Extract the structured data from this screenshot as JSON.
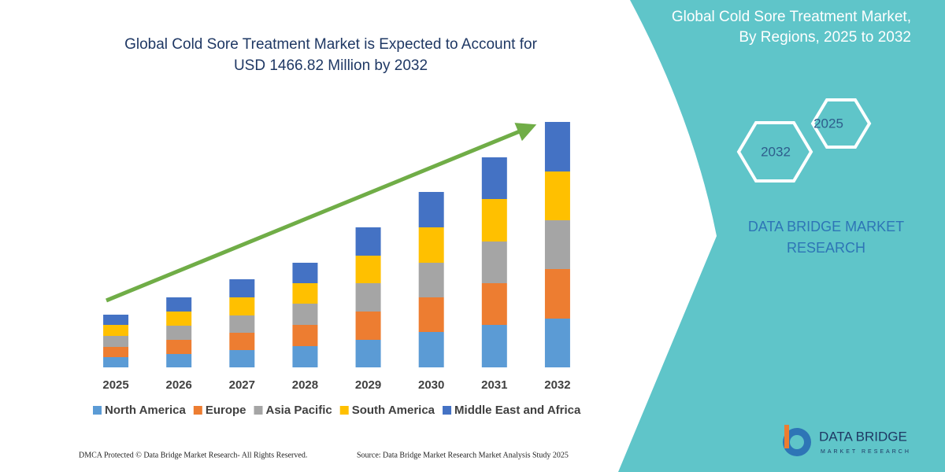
{
  "chart_data": {
    "type": "bar",
    "stacked": true,
    "title": [
      "Global Cold Sore Treatment Market is Expected to Account for",
      "USD 1466.82 Million by 2032"
    ],
    "categories": [
      "2025",
      "2026",
      "2027",
      "2028",
      "2029",
      "2030",
      "2031",
      "2032"
    ],
    "series": [
      {
        "name": "North America",
        "color": "#5b9bd5",
        "values": [
          13,
          17,
          22,
          27,
          35,
          45,
          54,
          62
        ]
      },
      {
        "name": "Europe",
        "color": "#ed7d31",
        "values": [
          13,
          18,
          22,
          27,
          36,
          44,
          53,
          63
        ]
      },
      {
        "name": "Asia Pacific",
        "color": "#a5a5a5",
        "values": [
          14,
          18,
          22,
          27,
          36,
          44,
          53,
          62
        ]
      },
      {
        "name": "South America",
        "color": "#ffc000",
        "values": [
          14,
          18,
          23,
          26,
          35,
          45,
          54,
          62
        ]
      },
      {
        "name": "Middle East and Africa",
        "color": "#4472c4",
        "values": [
          13,
          18,
          23,
          26,
          36,
          45,
          53,
          63
        ]
      }
    ]
  },
  "panel": {
    "title": [
      "Global Cold Sore Treatment Market,",
      "By Regions, 2025 to 2032"
    ],
    "hex_labels": [
      "2025",
      "2032"
    ],
    "brand": [
      "DATA BRIDGE MARKET",
      "RESEARCH"
    ]
  },
  "logo": {
    "name": "DATA BRIDGE",
    "tagline": "MARKET RESEARCH"
  },
  "footer": {
    "left": "DMCA Protected © Data Bridge Market Research-  All Rights Reserved.",
    "right": "Source: Data Bridge Market Research  Market Analysis Study 2025"
  }
}
